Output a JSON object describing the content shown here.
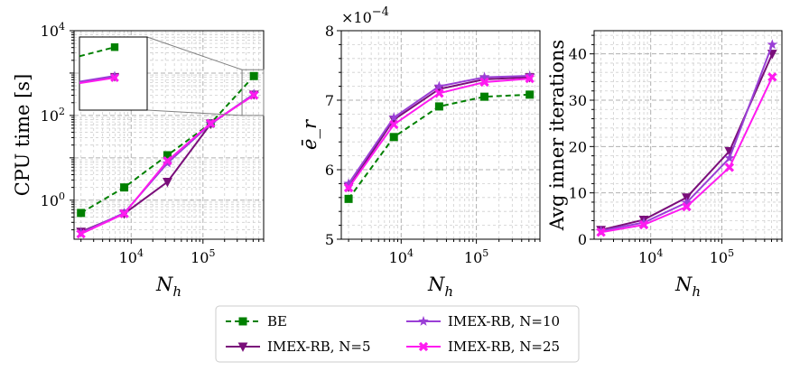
{
  "colors": {
    "BE": "#008000",
    "IMEX-RB, N=5": "#7a0e7a",
    "IMEX-RB, N=10": "#9a3fd6",
    "IMEX-RB, N=25": "#ff1af0"
  },
  "chart_data": [
    {
      "type": "line",
      "id": "cpu",
      "title": "",
      "xlabel_main": "N",
      "xlabel_sub": "h",
      "ylabel": "CPU time [s]",
      "xscale": "log",
      "yscale": "log",
      "xlim": [
        1600,
        700000
      ],
      "ylim": [
        0.12,
        10000
      ],
      "xticks": [
        {
          "value": 10000,
          "base": "10",
          "exp": "4"
        },
        {
          "value": 100000,
          "base": "10",
          "exp": "5"
        }
      ],
      "yticks": [
        {
          "value": 1,
          "base": "10",
          "exp": "0"
        },
        {
          "value": 100,
          "base": "10",
          "exp": "2"
        },
        {
          "value": 10000,
          "base": "10",
          "exp": "4"
        }
      ],
      "x": [
        2000,
        8000,
        32000,
        128000,
        512000
      ],
      "series": [
        {
          "name": "BE",
          "values": [
            0.5,
            2.0,
            11.5,
            65,
            850
          ]
        },
        {
          "name": "IMEX-RB, N=5",
          "values": [
            0.18,
            0.48,
            2.7,
            63,
            310
          ]
        },
        {
          "name": "IMEX-RB, N=10",
          "values": [
            0.17,
            0.5,
            7.5,
            63,
            320
          ]
        },
        {
          "name": "IMEX-RB, N=25",
          "values": [
            0.16,
            0.48,
            8.5,
            65,
            300
          ]
        }
      ],
      "inset": {
        "xlim": [
          350000,
          700000
        ],
        "ylim": [
          100,
          1200
        ],
        "markers_only_last": true
      }
    },
    {
      "type": "line",
      "id": "err",
      "title": "",
      "xlabel_main": "N",
      "xlabel_sub": "h",
      "ylabel": "ē_r",
      "offset_text_base": "×10",
      "offset_text_exp": "−4",
      "xscale": "log",
      "yscale": "linear",
      "xlim": [
        1600,
        700000
      ],
      "ylim": [
        5,
        8
      ],
      "xticks": [
        {
          "value": 10000,
          "base": "10",
          "exp": "4"
        },
        {
          "value": 100000,
          "base": "10",
          "exp": "5"
        }
      ],
      "yticks": [
        {
          "value": 5,
          "label": "5"
        },
        {
          "value": 6,
          "label": "6"
        },
        {
          "value": 7,
          "label": "7"
        },
        {
          "value": 8,
          "label": "8"
        }
      ],
      "x": [
        2000,
        8000,
        32000,
        128000,
        512000
      ],
      "series": [
        {
          "name": "BE",
          "values": [
            5.58,
            6.47,
            6.91,
            7.05,
            7.08
          ]
        },
        {
          "name": "IMEX-RB, N=5",
          "values": [
            5.75,
            6.72,
            7.16,
            7.3,
            7.33
          ]
        },
        {
          "name": "IMEX-RB, N=10",
          "values": [
            5.8,
            6.75,
            7.2,
            7.33,
            7.35
          ]
        },
        {
          "name": "IMEX-RB, N=25",
          "values": [
            5.74,
            6.65,
            7.1,
            7.26,
            7.31
          ]
        }
      ]
    },
    {
      "type": "line",
      "id": "iters",
      "title": "",
      "xlabel_main": "N",
      "xlabel_sub": "h",
      "ylabel": "Avg inner iterations",
      "xscale": "log",
      "yscale": "linear",
      "xlim": [
        1600,
        700000
      ],
      "ylim": [
        0,
        45
      ],
      "xticks": [
        {
          "value": 10000,
          "base": "10",
          "exp": "4"
        },
        {
          "value": 100000,
          "base": "10",
          "exp": "5"
        }
      ],
      "yticks": [
        {
          "value": 0,
          "label": "0"
        },
        {
          "value": 10,
          "label": "10"
        },
        {
          "value": 20,
          "label": "20"
        },
        {
          "value": 30,
          "label": "30"
        },
        {
          "value": 40,
          "label": "40"
        }
      ],
      "x": [
        2000,
        8000,
        32000,
        128000,
        512000
      ],
      "series": [
        {
          "name": "IMEX-RB, N=5",
          "values": [
            2.0,
            4.2,
            9.0,
            19.0,
            40.0
          ]
        },
        {
          "name": "IMEX-RB, N=10",
          "values": [
            1.8,
            3.6,
            7.9,
            17.5,
            42.0
          ]
        },
        {
          "name": "IMEX-RB, N=25",
          "values": [
            1.5,
            3.1,
            7.0,
            15.5,
            35.0
          ]
        }
      ]
    }
  ],
  "legend": {
    "placement": "bottom-center",
    "entries": [
      {
        "name": "BE",
        "label": "BE",
        "marker": "square",
        "dash": true
      },
      {
        "name": "IMEX-RB, N=5",
        "label": "IMEX-RB, N=5",
        "marker": "triangle-down",
        "dash": false
      },
      {
        "name": "IMEX-RB, N=10",
        "label": "IMEX-RB, N=10",
        "marker": "star",
        "dash": false
      },
      {
        "name": "IMEX-RB, N=25",
        "label": "IMEX-RB, N=25",
        "marker": "x-filled",
        "dash": false
      }
    ]
  }
}
